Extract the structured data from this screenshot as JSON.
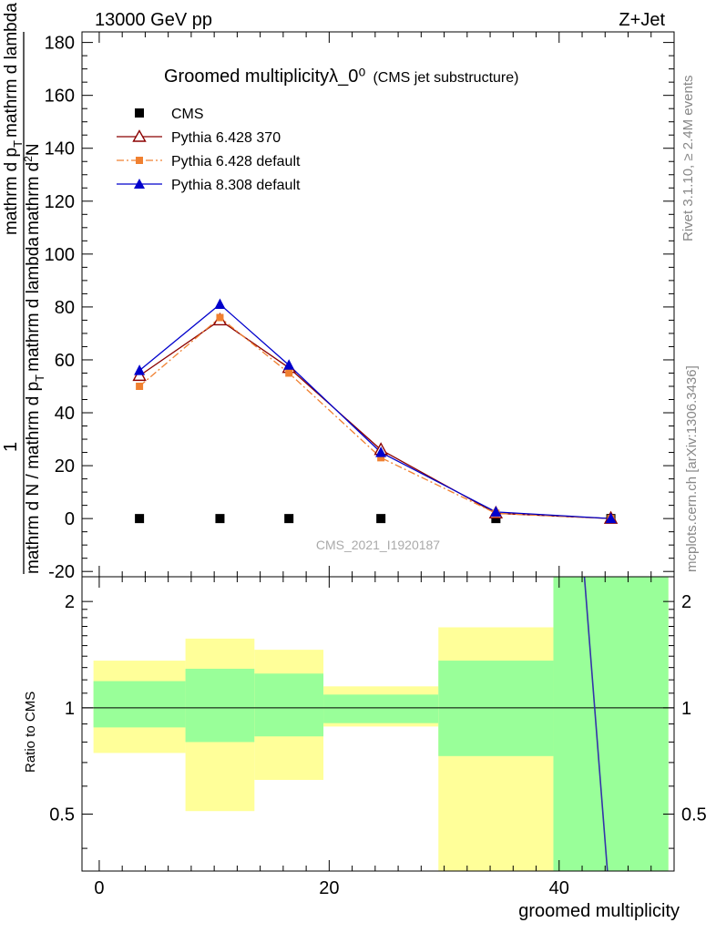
{
  "header": {
    "left": "13000 GeV pp",
    "right": "Z+Jet"
  },
  "side_labels": {
    "rivet": "Rivet 3.1.10, ≥ 2.4M events",
    "mcplots": "mcplots.cern.ch [arXiv:1306.3436]"
  },
  "chart_data": [
    {
      "type": "scatter",
      "title": "Groomed multiplicityλ_0⁰",
      "subtitle": "(CMS jet substructure)",
      "ylabel": {
        "numerator_top": "1",
        "numerator_bottom": "mathrm d N / mathrm d p_T mathrm d lambda",
        "numerator_sub": "T",
        "denominator_top": "mathrm d²N",
        "denominator_bottom": "mathrm d p_T mathrm d lambda",
        "display_top": "mathrm d",
        "display_sup": "2",
        "display_mid": "N",
        "display_tail_a": "mathrm d p",
        "display_tail_sub": "T",
        "display_tail_b": "mathrm d lambda",
        "den_a": "mathrm d N / mathrm d p",
        "den_sub": "T",
        "den_b": "mathrm d lambda"
      },
      "watermark": "CMS_2021_I1920187",
      "xlim": [
        -1.5,
        50
      ],
      "ylim": [
        -22,
        184
      ],
      "yticks": [
        -20,
        0,
        20,
        40,
        60,
        80,
        100,
        120,
        140,
        160,
        180
      ],
      "legend_position": "top-left",
      "series": [
        {
          "name": "CMS",
          "color": "#000000",
          "marker": "square",
          "line": "none",
          "x": [
            3.5,
            10.5,
            16.5,
            24.5,
            34.5,
            44.5
          ],
          "y": [
            0,
            0,
            0,
            0,
            0,
            0
          ]
        },
        {
          "name": "Pythia 6.428 370",
          "color": "#8b0000",
          "marker": "open-triangle",
          "line": "solid",
          "x": [
            3.5,
            10.5,
            16.5,
            24.5,
            34.5,
            44.5
          ],
          "y": [
            54,
            75,
            57,
            26,
            2,
            0
          ]
        },
        {
          "name": "Pythia 6.428 default",
          "color": "#f08030",
          "marker": "square",
          "line": "dashdot",
          "x": [
            3.5,
            10.5,
            16.5,
            24.5,
            34.5,
            44.5
          ],
          "y": [
            50,
            76,
            55,
            23,
            2,
            0
          ]
        },
        {
          "name": "Pythia 8.308 default",
          "color": "#0000cc",
          "marker": "triangle",
          "line": "solid",
          "x": [
            3.5,
            10.5,
            16.5,
            24.5,
            34.5,
            44.5
          ],
          "y": [
            56,
            81,
            58,
            25,
            2.5,
            0
          ]
        }
      ]
    },
    {
      "type": "area",
      "ylabel": "Ratio to CMS",
      "xlabel": "groomed multiplicity",
      "xlim": [
        -1.5,
        50
      ],
      "ylim": [
        0.345,
        2.35
      ],
      "yscale": "log",
      "yticks": [
        0.5,
        1,
        2
      ],
      "xticks": [
        0,
        20,
        40
      ],
      "band_colors": {
        "inner": "#99ff99",
        "outer": "#ffff99"
      },
      "bands": [
        {
          "xlo": -0.5,
          "xhi": 7.5,
          "inner": [
            0.88,
            1.19
          ],
          "outer": [
            0.745,
            1.36
          ]
        },
        {
          "xlo": 7.5,
          "xhi": 13.5,
          "inner": [
            0.8,
            1.29
          ],
          "outer": [
            0.51,
            1.57
          ]
        },
        {
          "xlo": 13.5,
          "xhi": 19.5,
          "inner": [
            0.83,
            1.25
          ],
          "outer": [
            0.625,
            1.46
          ]
        },
        {
          "xlo": 19.5,
          "xhi": 29.5,
          "inner": [
            0.905,
            1.09
          ],
          "outer": [
            0.885,
            1.15
          ]
        },
        {
          "xlo": 29.5,
          "xhi": 39.5,
          "inner": [
            0.73,
            1.36
          ],
          "outer": [
            0.345,
            1.69
          ]
        },
        {
          "xlo": 39.5,
          "xhi": 49.5,
          "inner": [
            0.345,
            2.35
          ],
          "outer": [
            0.345,
            2.35
          ]
        }
      ],
      "reference_line": 1,
      "ratio_line": {
        "color": "#3333aa",
        "x": [
          42.2,
          44.2
        ],
        "y": [
          2.35,
          0.345
        ]
      }
    }
  ]
}
